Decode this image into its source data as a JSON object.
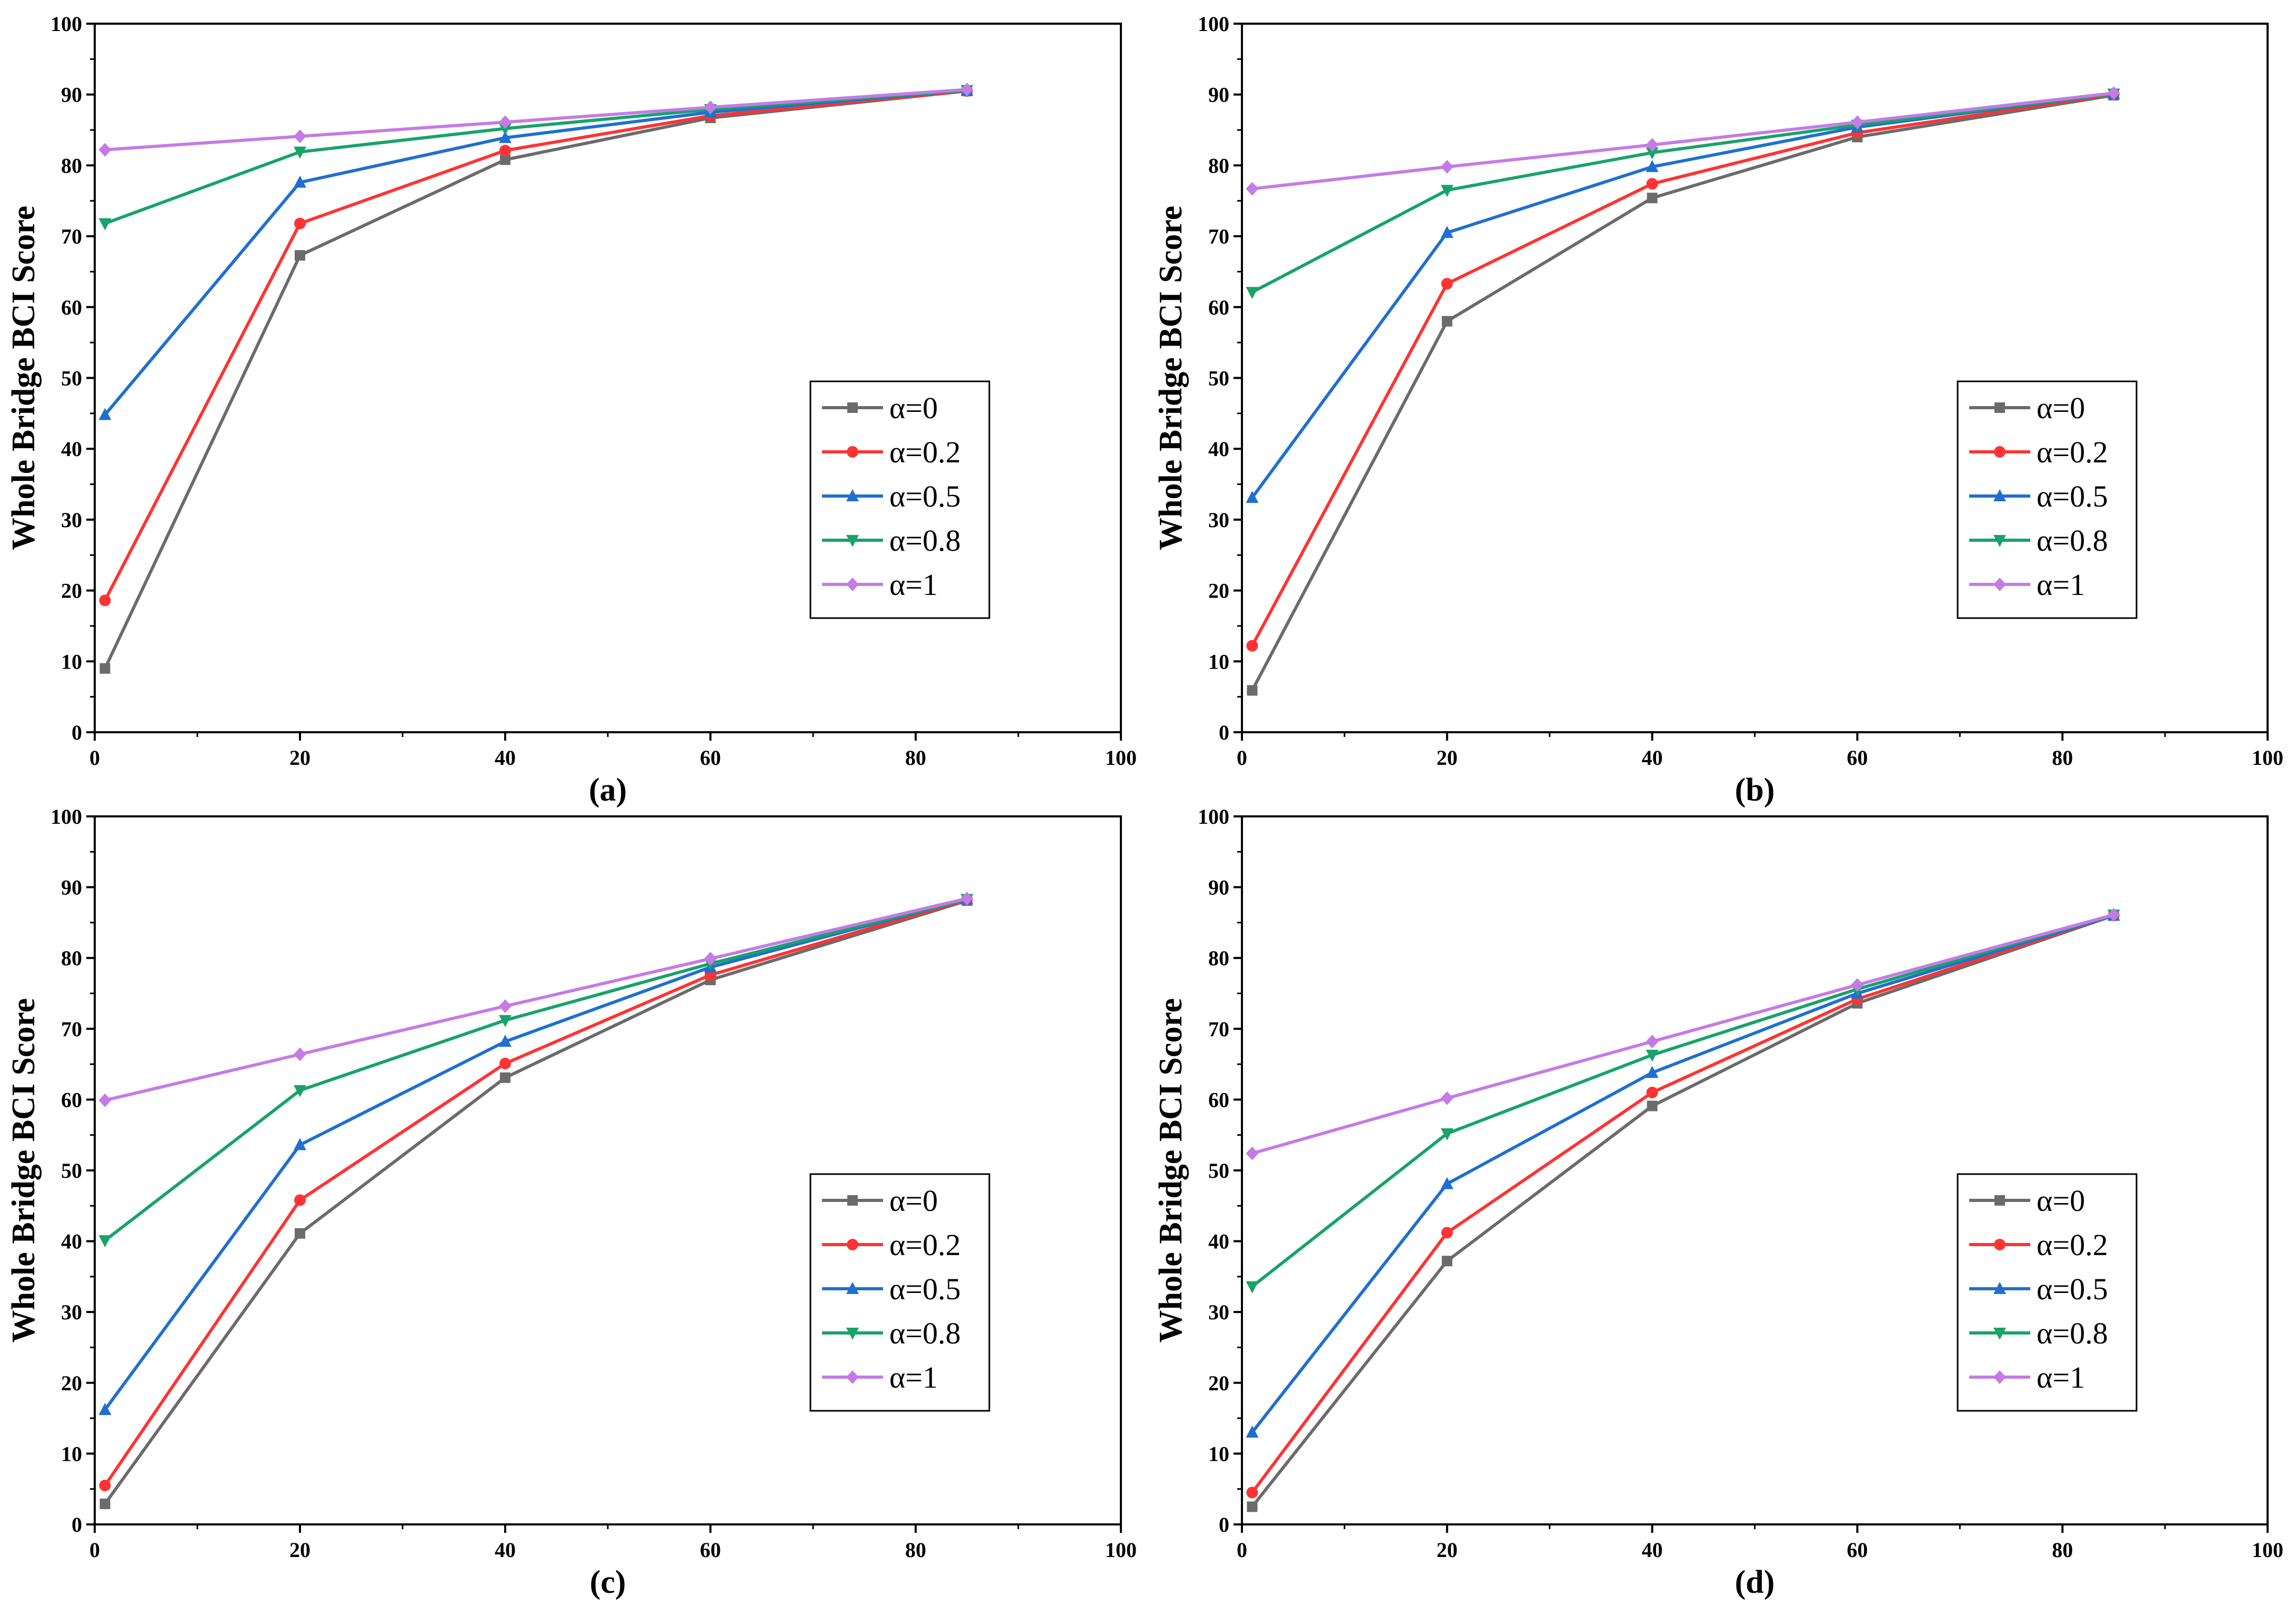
{
  "figure": {
    "ylabel": "Whole Bridge BCI Score"
  },
  "colors": {
    "alpha_0": "#6b6b6b",
    "alpha_0_2": "#ff3333",
    "alpha_0_5": "#1f6fd1",
    "alpha_0_8": "#17a36a",
    "alpha_1": "#c47be6"
  },
  "chart_data": [
    {
      "type": "line",
      "panel_label": "(a)",
      "ylabel": "Whole Bridge BCI Score",
      "xlim": [
        0,
        100
      ],
      "ylim": [
        0,
        100
      ],
      "xticks": [
        "0",
        "20",
        "40",
        "60",
        "80",
        "100"
      ],
      "yticks": [
        "0",
        "10",
        "20",
        "30",
        "40",
        "50",
        "60",
        "70",
        "80",
        "90",
        "100"
      ],
      "x": [
        1,
        20,
        40,
        60,
        85
      ],
      "legend_position": "center-right",
      "series": [
        {
          "name": "α=0",
          "marker": "square",
          "color_key": "alpha_0",
          "values": [
            9.0,
            67.3,
            80.8,
            86.7,
            90.5
          ]
        },
        {
          "name": "α=0.2",
          "marker": "circle",
          "color_key": "alpha_0_2",
          "values": [
            18.6,
            71.8,
            82.1,
            87.0,
            90.5
          ]
        },
        {
          "name": "α=0.5",
          "marker": "triangle-up",
          "color_key": "alpha_0_5",
          "values": [
            44.8,
            77.6,
            83.9,
            87.5,
            90.6
          ]
        },
        {
          "name": "α=0.8",
          "marker": "triangle-down",
          "color_key": "alpha_0_8",
          "values": [
            71.8,
            81.9,
            85.2,
            87.9,
            90.6
          ]
        },
        {
          "name": "α=1",
          "marker": "diamond",
          "color_key": "alpha_1",
          "values": [
            82.2,
            84.1,
            86.1,
            88.2,
            90.7
          ]
        }
      ]
    },
    {
      "type": "line",
      "panel_label": "(b)",
      "ylabel": "Whole Bridge BCI Score",
      "xlim": [
        0,
        100
      ],
      "ylim": [
        0,
        100
      ],
      "xticks": [
        "0",
        "20",
        "40",
        "60",
        "80",
        "100"
      ],
      "yticks": [
        "0",
        "10",
        "20",
        "30",
        "40",
        "50",
        "60",
        "70",
        "80",
        "90",
        "100"
      ],
      "x": [
        1,
        20,
        40,
        60,
        85
      ],
      "legend_position": "center-right",
      "series": [
        {
          "name": "α=0",
          "marker": "square",
          "color_key": "alpha_0",
          "values": [
            5.9,
            58.0,
            75.4,
            84.0,
            89.9
          ]
        },
        {
          "name": "α=0.2",
          "marker": "circle",
          "color_key": "alpha_0_2",
          "values": [
            12.2,
            63.3,
            77.4,
            84.6,
            90.0
          ]
        },
        {
          "name": "α=0.5",
          "marker": "triangle-up",
          "color_key": "alpha_0_5",
          "values": [
            33.1,
            70.5,
            79.8,
            85.4,
            90.1
          ]
        },
        {
          "name": "α=0.8",
          "marker": "triangle-down",
          "color_key": "alpha_0_8",
          "values": [
            62.1,
            76.5,
            81.8,
            85.7,
            90.1
          ]
        },
        {
          "name": "α=1",
          "marker": "diamond",
          "color_key": "alpha_1",
          "values": [
            76.7,
            79.8,
            82.9,
            86.1,
            90.2
          ]
        }
      ]
    },
    {
      "type": "line",
      "panel_label": "(c)",
      "ylabel": "Whole Bridge BCI Score",
      "xlim": [
        0,
        100
      ],
      "ylim": [
        0,
        100
      ],
      "xticks": [
        "0",
        "20",
        "40",
        "60",
        "80",
        "100"
      ],
      "yticks": [
        "0",
        "10",
        "20",
        "30",
        "40",
        "50",
        "60",
        "70",
        "80",
        "90",
        "100"
      ],
      "x": [
        1,
        20,
        40,
        60,
        85
      ],
      "legend_position": "center-right",
      "series": [
        {
          "name": "α=0",
          "marker": "square",
          "color_key": "alpha_0",
          "values": [
            2.9,
            41.1,
            63.1,
            76.9,
            88.1
          ]
        },
        {
          "name": "α=0.2",
          "marker": "circle",
          "color_key": "alpha_0_2",
          "values": [
            5.5,
            45.8,
            65.1,
            77.6,
            88.2
          ]
        },
        {
          "name": "α=0.5",
          "marker": "triangle-up",
          "color_key": "alpha_0_5",
          "values": [
            16.2,
            53.6,
            68.2,
            78.7,
            88.3
          ]
        },
        {
          "name": "α=0.8",
          "marker": "triangle-down",
          "color_key": "alpha_0_8",
          "values": [
            40.1,
            61.3,
            71.2,
            79.2,
            88.3
          ]
        },
        {
          "name": "α=1",
          "marker": "diamond",
          "color_key": "alpha_1",
          "values": [
            59.9,
            66.4,
            73.2,
            79.9,
            88.4
          ]
        }
      ]
    },
    {
      "type": "line",
      "panel_label": "(d)",
      "ylabel": "Whole Bridge BCI Score",
      "xlim": [
        0,
        100
      ],
      "ylim": [
        0,
        100
      ],
      "xticks": [
        "0",
        "20",
        "40",
        "60",
        "80",
        "100"
      ],
      "yticks": [
        "0",
        "10",
        "20",
        "30",
        "40",
        "50",
        "60",
        "70",
        "80",
        "90",
        "100"
      ],
      "x": [
        1,
        20,
        40,
        60,
        85
      ],
      "legend_position": "center-right",
      "series": [
        {
          "name": "α=0",
          "marker": "square",
          "color_key": "alpha_0",
          "values": [
            2.5,
            37.2,
            59.1,
            73.6,
            86.0
          ]
        },
        {
          "name": "α=0.2",
          "marker": "circle",
          "color_key": "alpha_0_2",
          "values": [
            4.5,
            41.2,
            61.0,
            74.2,
            86.0
          ]
        },
        {
          "name": "α=0.5",
          "marker": "triangle-up",
          "color_key": "alpha_0_5",
          "values": [
            13.0,
            48.1,
            63.8,
            75.0,
            86.0
          ]
        },
        {
          "name": "α=0.8",
          "marker": "triangle-down",
          "color_key": "alpha_0_8",
          "values": [
            33.6,
            55.2,
            66.3,
            75.6,
            86.1
          ]
        },
        {
          "name": "α=1",
          "marker": "diamond",
          "color_key": "alpha_1",
          "values": [
            52.4,
            60.2,
            68.2,
            76.2,
            86.1
          ]
        }
      ]
    }
  ]
}
